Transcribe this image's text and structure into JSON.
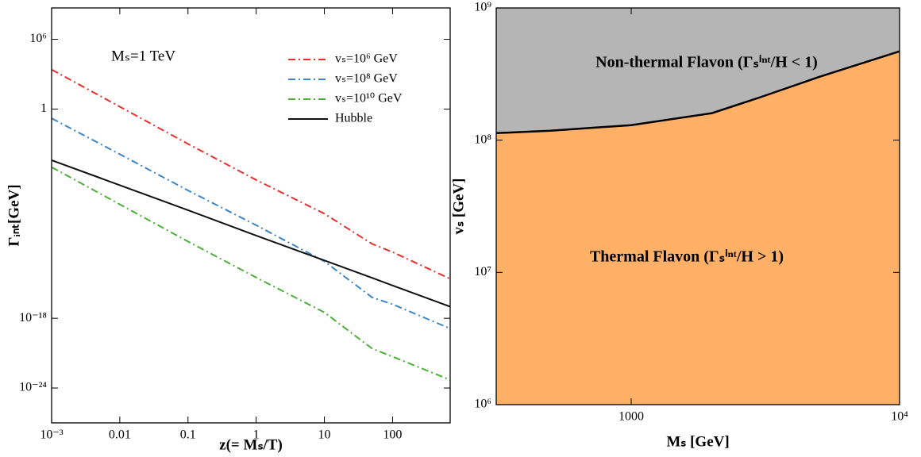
{
  "chart_data": [
    {
      "type": "line",
      "annotation": "Mₛ=1 TeV",
      "x_label": "z(= Mₛ/T)",
      "y_label": "Γᵢₙₜ[GeV]",
      "log_x": true,
      "log_y": true,
      "xlim": [
        0.001,
        700
      ],
      "ylim": [
        1e-27,
        500000000.0
      ],
      "xticks": [
        {
          "value": 0.001,
          "label": "10⁻³"
        },
        0.01,
        0.1,
        1,
        10,
        100
      ],
      "yticks": [
        {
          "value": 1000000.0,
          "label": "10⁶"
        },
        1,
        {
          "value": 1e-18,
          "label": "10⁻¹⁸"
        },
        {
          "value": 1e-24,
          "label": "10⁻²⁴"
        }
      ],
      "legend": "upper right",
      "x": [
        0.001,
        0.01,
        0.1,
        1,
        10,
        50,
        100,
        700
      ],
      "series": [
        {
          "name": "vₛ=10⁶ GeV",
          "color": "#e8302f",
          "dash": "dashdot",
          "values": [
            2500.0,
            1.6,
            0.001,
            7.9e-07,
            1e-09,
            2.5e-12,
            5e-13,
            2.5e-15
          ]
        },
        {
          "name": "vₛ=10⁸ GeV",
          "color": "#3d85c6",
          "dash": "dashdot",
          "values": [
            0.16,
            0.00013,
            1e-07,
            1e-10,
            7.9e-14,
            6.3e-17,
            1.6e-17,
            1.3e-19
          ]
        },
        {
          "name": "vₛ=10¹⁰ GeV",
          "color": "#4caf3a",
          "dash": "dashdot",
          "values": [
            1e-05,
            6.3e-09,
            4e-12,
            3.2e-15,
            3.2e-18,
            2.5e-21,
            5e-22,
            5e-24
          ]
        },
        {
          "name": "Hubble",
          "color": "#111111",
          "dash": "solid",
          "values": [
            4e-05,
            2.8e-07,
            2e-09,
            1.3e-11,
            9.5e-14,
            3e-15,
            6.6e-16,
            1e-17
          ]
        }
      ]
    },
    {
      "type": "area",
      "x_label": "Mₛ [GeV]",
      "y_label": "vₛ [GeV]",
      "log_x": true,
      "log_y": true,
      "xlim": [
        314,
        10000
      ],
      "ylim": [
        1000000.0,
        1000000000.0
      ],
      "xticks": [
        1000,
        {
          "value": 10000,
          "label": "10⁴"
        }
      ],
      "yticks": [
        {
          "value": 1000000.0,
          "label": "10⁶"
        },
        {
          "value": 10000000.0,
          "label": "10⁷"
        },
        {
          "value": 100000000.0,
          "label": "10⁸"
        },
        {
          "value": 1000000000.0,
          "label": "10⁹"
        }
      ],
      "color": "#000000",
      "fill_below": "#ffb067",
      "fill_above": "#b5b5b5",
      "x": [
        314,
        500,
        1000,
        2000,
        3000,
        5000,
        10000
      ],
      "values": [
        113000000.0,
        118000000.0,
        130000000.0,
        160000000.0,
        210000000.0,
        300000000.0,
        470000000.0
      ],
      "annotations": [
        {
          "text": "Non-thermal Flavon (Γₛⁱⁿᵗ/H < 1)",
          "color": "#111111"
        },
        {
          "text": "Thermal Flavon (Γₛⁱⁿᵗ/H > 1)",
          "color": "#8b0000"
        }
      ]
    }
  ]
}
